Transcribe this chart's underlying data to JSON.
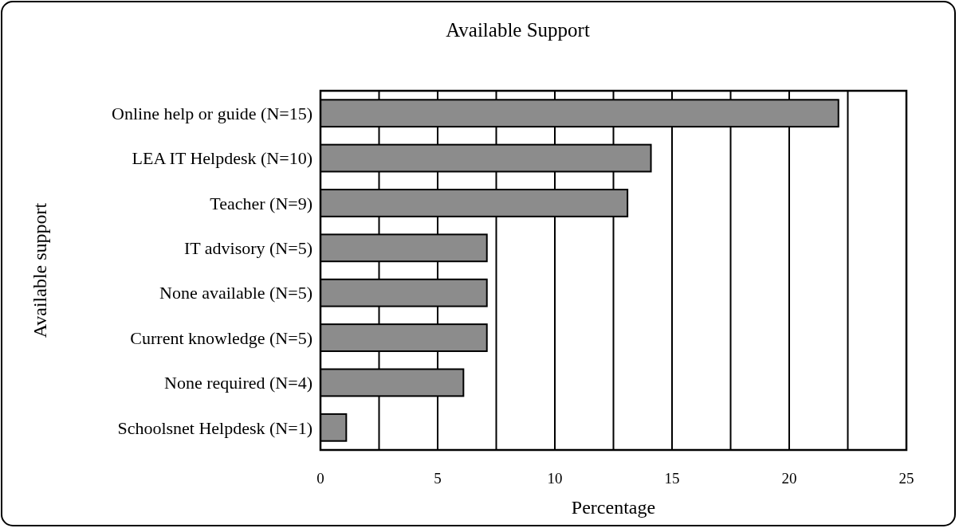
{
  "chart_data": {
    "type": "bar",
    "orientation": "horizontal",
    "title": "Available Support",
    "xlabel": "Percentage",
    "ylabel": "Available support",
    "categories": [
      "Online help or guide (N=15)",
      "LEA IT Helpdesk (N=10)",
      "Teacher (N=9)",
      "IT advisory (N=5)",
      "None available (N=5)",
      "Current knowledge (N=5)",
      "None required (N=4)",
      "Schoolsnet Helpdesk (N=1)"
    ],
    "values": [
      22.1,
      14.1,
      13.1,
      7.1,
      7.1,
      7.1,
      6.1,
      1.1
    ],
    "color": "#8c8c8c",
    "xlim": [
      0,
      25
    ],
    "xticks": [
      0,
      {
        "value": 2.5,
        "label": null
      },
      5,
      {
        "value": 7.5,
        "label": null
      },
      10,
      {
        "value": 12.5,
        "label": null
      },
      15,
      {
        "value": 17.5,
        "label": null
      },
      20,
      {
        "value": 22.5,
        "label": null
      },
      25
    ],
    "grid": "x"
  }
}
